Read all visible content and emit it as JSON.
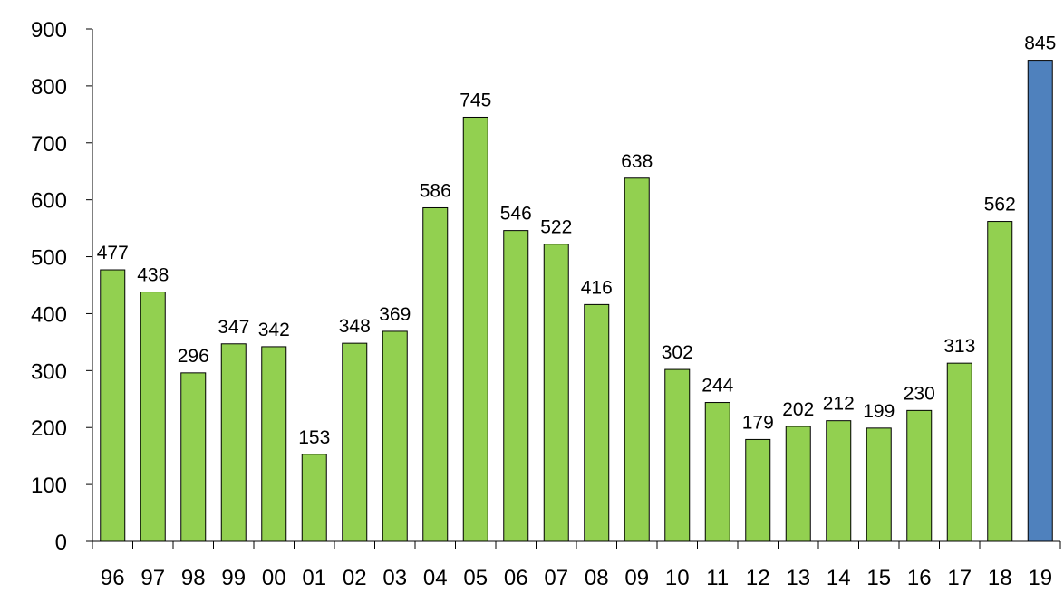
{
  "chart_data": {
    "type": "bar",
    "categories": [
      "96",
      "97",
      "98",
      "99",
      "00",
      "01",
      "02",
      "03",
      "04",
      "05",
      "06",
      "07",
      "08",
      "09",
      "10",
      "11",
      "12",
      "13",
      "14",
      "15",
      "16",
      "17",
      "18",
      "19"
    ],
    "values": [
      477,
      438,
      296,
      347,
      342,
      153,
      348,
      369,
      586,
      745,
      546,
      522,
      416,
      638,
      302,
      244,
      179,
      202,
      212,
      199,
      230,
      313,
      562,
      845
    ],
    "ylim": [
      0,
      900
    ],
    "yticks": [
      0,
      100,
      200,
      300,
      400,
      500,
      600,
      700,
      800,
      900
    ],
    "title": "",
    "xlabel": "",
    "ylabel": "",
    "grid": false,
    "legend": "none",
    "colors": {
      "default_bar": "#92d050",
      "highlight_bar": "#4f81bd",
      "highlight_category": "19",
      "bar_outline": "#000000",
      "axis": "#000000"
    }
  }
}
